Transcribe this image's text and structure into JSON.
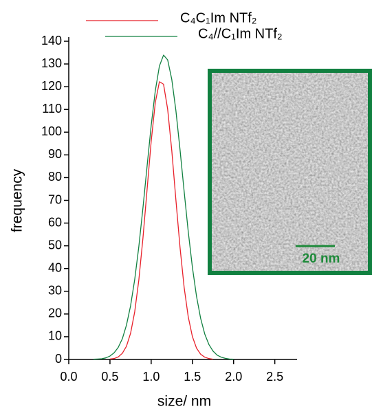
{
  "chart_data": {
    "type": "line",
    "x_label": "size/ nm",
    "y_label": "frequency",
    "x": [
      0.3,
      0.35,
      0.4,
      0.45,
      0.5,
      0.55,
      0.6,
      0.65,
      0.7,
      0.75,
      0.8,
      0.85,
      0.9,
      0.95,
      1.0,
      1.05,
      1.1,
      1.15,
      1.2,
      1.25,
      1.3,
      1.35,
      1.4,
      1.45,
      1.5,
      1.55,
      1.6,
      1.65,
      1.7,
      1.75,
      1.8,
      1.85,
      1.9,
      1.95,
      2.0
    ],
    "series": [
      {
        "name": "C₄C₁Im NTf₂",
        "color": "#e8202a",
        "values": [
          null,
          null,
          null,
          null,
          0.2,
          0.4,
          1.1,
          2.7,
          5.8,
          11.5,
          20.9,
          34.9,
          53.3,
          74.6,
          95.9,
          113.0,
          122.2,
          121.1,
          110.1,
          91.9,
          70.2,
          49.3,
          31.7,
          18.7,
          10.1,
          5.0,
          2.3,
          1.0,
          0.4,
          0.1,
          null,
          null,
          null,
          null,
          null
        ]
      },
      {
        "name": "C₄//C₁Im NTf₂",
        "color": "#118040",
        "values": [
          0.1,
          0.2,
          0.3,
          0.7,
          1.5,
          2.9,
          5.3,
          9.1,
          15.1,
          23.6,
          35.1,
          49.6,
          66.6,
          84.9,
          102.9,
          118.2,
          129.1,
          133.9,
          131.8,
          123.2,
          109.5,
          92.3,
          73.9,
          56.2,
          40.6,
          27.8,
          18.1,
          11.2,
          6.6,
          3.7,
          1.9,
          1.0,
          0.5,
          0.2,
          0.1
        ]
      }
    ],
    "xlim": [
      0,
      2.77
    ],
    "xticks": [
      {
        "value": 0,
        "label": "0.0"
      },
      {
        "value": 0.5,
        "label": "0.5"
      },
      {
        "value": 1,
        "label": "1.0"
      },
      {
        "value": 1.5,
        "label": "1.5"
      },
      {
        "value": 2,
        "label": "2.0"
      },
      {
        "value": 2.5,
        "label": "2.5"
      }
    ],
    "ylim": [
      0,
      140
    ],
    "yticks": [
      0,
      10,
      20,
      30,
      40,
      50,
      60,
      70,
      80,
      90,
      100,
      110,
      120,
      130,
      140
    ],
    "inset_scale_bar_label": "20 nm"
  }
}
